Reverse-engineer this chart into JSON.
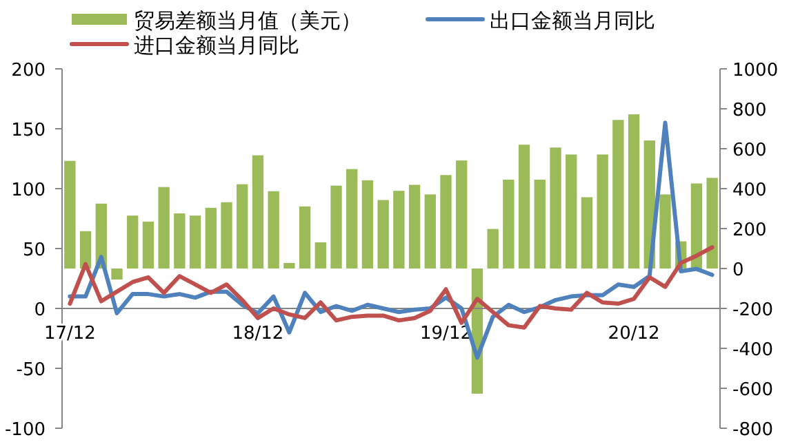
{
  "chart_data": {
    "type": "bar",
    "categories": [
      "17/12",
      null,
      null,
      null,
      null,
      null,
      null,
      null,
      null,
      null,
      null,
      null,
      "18/12",
      null,
      null,
      null,
      null,
      null,
      null,
      null,
      null,
      null,
      null,
      null,
      "19/12",
      null,
      null,
      null,
      null,
      null,
      null,
      null,
      null,
      null,
      null,
      null,
      "20/12",
      null,
      null,
      null,
      null,
      null
    ],
    "series": [
      {
        "name": "贸易差额当月值（美元）",
        "axis": "y2",
        "color": "#9bbb59",
        "values": [
          539,
          187,
          325,
          -55,
          265,
          235,
          408,
          276,
          265,
          304,
          332,
          422,
          567,
          387,
          28,
          311,
          131,
          415,
          498,
          442,
          343,
          389,
          419,
          371,
          468,
          541,
          -627,
          198,
          445,
          620,
          445,
          606,
          571,
          357,
          571,
          744,
          772,
          641,
          371,
          136,
          426,
          454
        ]
      },
      {
        "name": "出口金额当月同比",
        "type": "line",
        "axis": "y",
        "color": "#4f81bd",
        "values": [
          10,
          10,
          43,
          -4,
          12,
          12,
          10,
          12,
          9,
          14,
          14,
          3,
          -4,
          10,
          -20,
          13,
          -3,
          2,
          -2,
          3,
          0,
          -3,
          -1,
          0,
          9,
          0,
          -41,
          -7,
          3,
          -3,
          1,
          7,
          10,
          11,
          11,
          20,
          18,
          27,
          155,
          31,
          33,
          28
        ]
      },
      {
        "name": "进口金额当月同比",
        "type": "line",
        "axis": "y",
        "color": "#c0504d",
        "values": [
          4,
          37,
          6,
          14,
          22,
          26,
          13,
          27,
          20,
          13,
          20,
          7,
          -8,
          0,
          -5,
          -8,
          5,
          -10,
          -7,
          -6,
          -6,
          -10,
          -8,
          -2,
          16,
          -12,
          8,
          -3,
          -14,
          -16,
          2,
          0,
          -1,
          13,
          5,
          4,
          8,
          26,
          18,
          38,
          44,
          51
        ]
      }
    ],
    "ylim": [
      -100,
      200
    ],
    "yticks": [
      -100,
      -50,
      0,
      50,
      100,
      150,
      200
    ],
    "y2lim": [
      -800,
      1000
    ],
    "y2ticks": [
      -800,
      -600,
      -400,
      -200,
      0,
      200,
      400,
      600,
      800,
      1000
    ],
    "legend": "top",
    "grid": false
  }
}
